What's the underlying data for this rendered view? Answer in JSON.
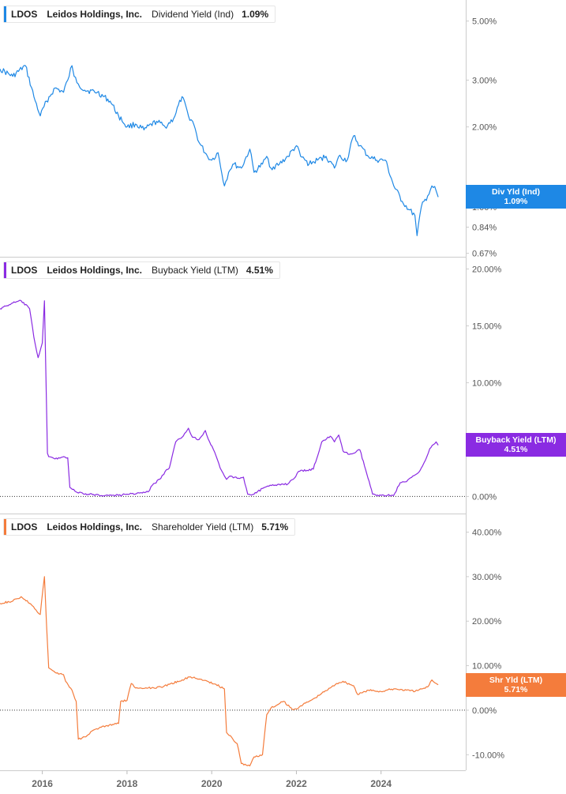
{
  "chart_data": [
    {
      "type": "line",
      "ticker": "LDOS",
      "company": "Leidos Holdings, Inc.",
      "metric": "Dividend Yield (Ind)",
      "current_value": "1.09%",
      "flag_label": "Div Yld (Ind)",
      "color": "#1e88e5",
      "yscale": "log",
      "ylim": [
        0.65,
        6.0
      ],
      "yticks": [
        0.67,
        0.84,
        1.0,
        2.0,
        3.0,
        5.0
      ],
      "ytick_labels": [
        "0.67%",
        "0.84%",
        "1.00%",
        "2.00%",
        "3.00%",
        "5.00%"
      ],
      "x": [
        2015.0,
        2015.3,
        2015.6,
        2015.8,
        2015.95,
        2016.1,
        2016.3,
        2016.5,
        2016.6,
        2016.7,
        2016.75,
        2016.85,
        2017.0,
        2017.3,
        2017.6,
        2017.8,
        2018.0,
        2018.2,
        2018.4,
        2018.7,
        2018.9,
        2019.1,
        2019.3,
        2019.45,
        2019.55,
        2019.7,
        2019.9,
        2020.0,
        2020.15,
        2020.3,
        2020.4,
        2020.5,
        2020.7,
        2020.9,
        2021.0,
        2021.2,
        2021.3,
        2021.4,
        2021.6,
        2021.8,
        2022.0,
        2022.1,
        2022.3,
        2022.5,
        2022.7,
        2022.9,
        2023.0,
        2023.2,
        2023.35,
        2023.5,
        2023.7,
        2023.9,
        2024.1,
        2024.3,
        2024.5,
        2024.65,
        2024.8,
        2024.85,
        2024.95,
        2025.1,
        2025.2,
        2025.3,
        2025.35
      ],
      "y": [
        3.3,
        3.1,
        3.4,
        2.6,
        2.2,
        2.5,
        2.8,
        2.7,
        3.0,
        3.4,
        3.1,
        2.9,
        2.75,
        2.7,
        2.5,
        2.2,
        2.0,
        2.05,
        1.95,
        2.1,
        2.0,
        2.15,
        2.6,
        2.2,
        2.1,
        1.75,
        1.55,
        1.5,
        1.6,
        1.2,
        1.35,
        1.45,
        1.4,
        1.65,
        1.35,
        1.45,
        1.55,
        1.4,
        1.45,
        1.55,
        1.7,
        1.55,
        1.45,
        1.5,
        1.55,
        1.4,
        1.55,
        1.5,
        1.85,
        1.7,
        1.55,
        1.5,
        1.5,
        1.2,
        1.05,
        0.98,
        0.93,
        0.78,
        1.0,
        1.1,
        1.2,
        1.15,
        1.09
      ]
    },
    {
      "type": "line",
      "ticker": "LDOS",
      "company": "Leidos Holdings, Inc.",
      "metric": "Buyback Yield (LTM)",
      "current_value": "4.51%",
      "flag_label": "Buyback Yield (LTM)",
      "color": "#8a2be2",
      "ylim": [
        -1.5,
        21.0
      ],
      "yticks": [
        0,
        5,
        10,
        15,
        20
      ],
      "ytick_labels": [
        "0.00%",
        "5.00%",
        "10.00%",
        "15.00%",
        "20.00%"
      ],
      "x": [
        2015.0,
        2015.3,
        2015.5,
        2015.7,
        2015.8,
        2015.9,
        2016.0,
        2016.05,
        2016.12,
        2016.15,
        2016.3,
        2016.5,
        2016.6,
        2016.65,
        2016.8,
        2017.0,
        2017.5,
        2017.8,
        2018.0,
        2018.3,
        2018.5,
        2018.6,
        2018.8,
        2018.9,
        2019.0,
        2019.15,
        2019.3,
        2019.45,
        2019.55,
        2019.7,
        2019.85,
        2019.95,
        2020.1,
        2020.2,
        2020.3,
        2020.35,
        2020.45,
        2020.6,
        2020.75,
        2020.85,
        2021.0,
        2021.2,
        2021.35,
        2021.5,
        2021.65,
        2021.8,
        2021.95,
        2022.05,
        2022.25,
        2022.4,
        2022.6,
        2022.8,
        2022.9,
        2023.0,
        2023.1,
        2023.25,
        2023.35,
        2023.5,
        2023.8,
        2024.0,
        2024.15,
        2024.3,
        2024.45,
        2024.6,
        2024.75,
        2024.85,
        2024.95,
        2025.05,
        2025.15,
        2025.3,
        2025.35
      ],
      "y": [
        16.5,
        17.0,
        17.2,
        16.5,
        14.0,
        12.2,
        13.5,
        17.2,
        3.8,
        3.5,
        3.3,
        3.5,
        3.4,
        0.8,
        0.4,
        0.2,
        0.1,
        0.1,
        0.2,
        0.3,
        0.4,
        1.0,
        1.6,
        2.2,
        2.5,
        4.8,
        5.2,
        6.0,
        5.2,
        5.0,
        5.8,
        4.8,
        3.6,
        2.5,
        1.8,
        1.5,
        1.8,
        1.6,
        1.7,
        0.2,
        0.2,
        0.7,
        0.9,
        1.0,
        1.1,
        1.1,
        1.6,
        2.2,
        2.3,
        2.4,
        4.8,
        5.3,
        4.8,
        5.4,
        4.0,
        3.7,
        3.8,
        4.1,
        0.2,
        0.1,
        0.1,
        0.1,
        1.2,
        1.3,
        1.8,
        2.0,
        2.5,
        3.2,
        4.2,
        4.8,
        4.51
      ]
    },
    {
      "type": "line",
      "ticker": "LDOS",
      "company": "Leidos Holdings, Inc.",
      "metric": "Shareholder Yield (LTM)",
      "current_value": "5.71%",
      "flag_label": "Shr Yld (LTM)",
      "color": "#f47c3c",
      "ylim": [
        -13.5,
        44.0
      ],
      "yticks": [
        -10,
        0,
        10,
        20,
        30,
        40
      ],
      "ytick_labels": [
        "-10.00%",
        "0.00%",
        "10.00%",
        "20.00%",
        "30.00%",
        "40.00%"
      ],
      "x": [
        2015.0,
        2015.3,
        2015.5,
        2015.7,
        2015.85,
        2015.95,
        2016.05,
        2016.1,
        2016.15,
        2016.3,
        2016.5,
        2016.55,
        2016.7,
        2016.8,
        2016.85,
        2017.0,
        2017.2,
        2017.5,
        2017.8,
        2017.85,
        2018.0,
        2018.1,
        2018.2,
        2018.5,
        2018.8,
        2019.0,
        2019.3,
        2019.5,
        2019.7,
        2019.9,
        2020.1,
        2020.3,
        2020.35,
        2020.5,
        2020.6,
        2020.7,
        2020.9,
        2021.0,
        2021.2,
        2021.3,
        2021.4,
        2021.55,
        2021.7,
        2021.9,
        2022.0,
        2022.1,
        2022.3,
        2022.45,
        2022.6,
        2022.8,
        2022.95,
        2023.1,
        2023.35,
        2023.45,
        2023.7,
        2024.0,
        2024.3,
        2024.6,
        2024.8,
        2024.9,
        2025.1,
        2025.2,
        2025.3,
        2025.35
      ],
      "y": [
        24.0,
        24.5,
        25.5,
        24.0,
        22.5,
        21.5,
        30.0,
        19.0,
        9.5,
        8.5,
        8.0,
        6.5,
        4.5,
        2.0,
        -6.5,
        -6.0,
        -4.5,
        -3.5,
        -3.0,
        2.0,
        2.2,
        6.0,
        5.0,
        5.0,
        5.2,
        5.8,
        6.8,
        7.5,
        7.0,
        6.5,
        5.8,
        4.8,
        -5.0,
        -6.5,
        -7.5,
        -12.0,
        -12.5,
        -10.5,
        -10.0,
        -1.0,
        0.5,
        1.2,
        2.0,
        0.2,
        0.3,
        1.0,
        2.0,
        2.8,
        3.8,
        5.0,
        6.0,
        6.5,
        5.5,
        3.5,
        4.5,
        4.2,
        4.8,
        4.5,
        4.2,
        4.6,
        5.2,
        6.8,
        6.0,
        5.71
      ]
    }
  ],
  "xaxis": {
    "xlim": [
      2015.0,
      2026.0
    ],
    "ticks": [
      2016,
      2018,
      2020,
      2022,
      2024
    ],
    "labels": [
      "2016",
      "2018",
      "2020",
      "2022",
      "2024"
    ]
  }
}
